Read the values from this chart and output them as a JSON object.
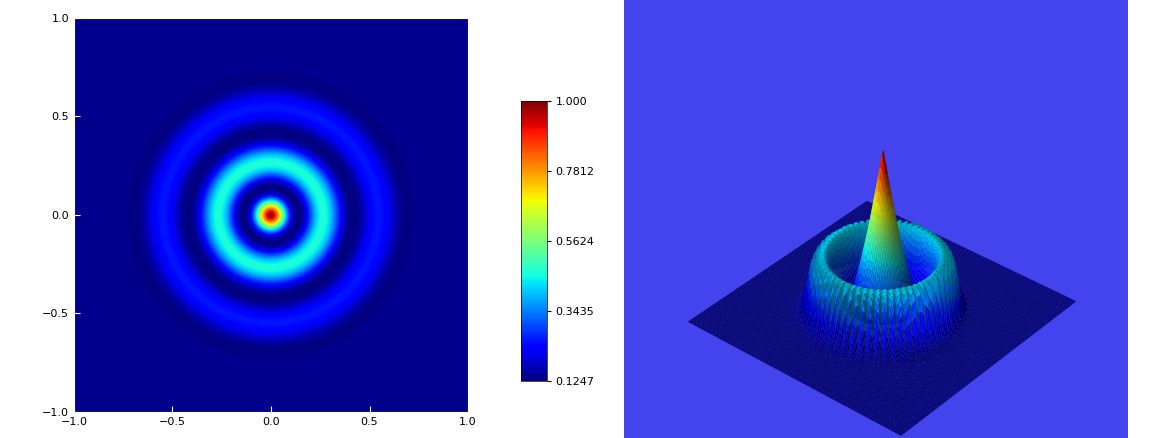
{
  "colorbar_values": [
    0.1247,
    0.3435,
    0.5624,
    0.7812,
    1.0
  ],
  "colorbar_labels": [
    "0.1247",
    "0.3435",
    "0.5624",
    "0.7812",
    "1.000"
  ],
  "vmin": 0.1247,
  "vmax": 1.0,
  "xlim": [
    -1.0,
    1.0
  ],
  "ylim": [
    -1.0,
    1.0
  ],
  "cmap": "jet",
  "ax1_bg": "#3333bb",
  "fig_bg": "#ffffff",
  "bright_blue": "#4444ee",
  "pane_color": "#3333bb",
  "xticks": [
    -1.0,
    -0.5,
    0.0,
    0.5,
    1.0
  ],
  "yticks": [
    -1.0,
    -0.5,
    0.0,
    0.5,
    1.0
  ],
  "elev": 35,
  "azim": -50
}
